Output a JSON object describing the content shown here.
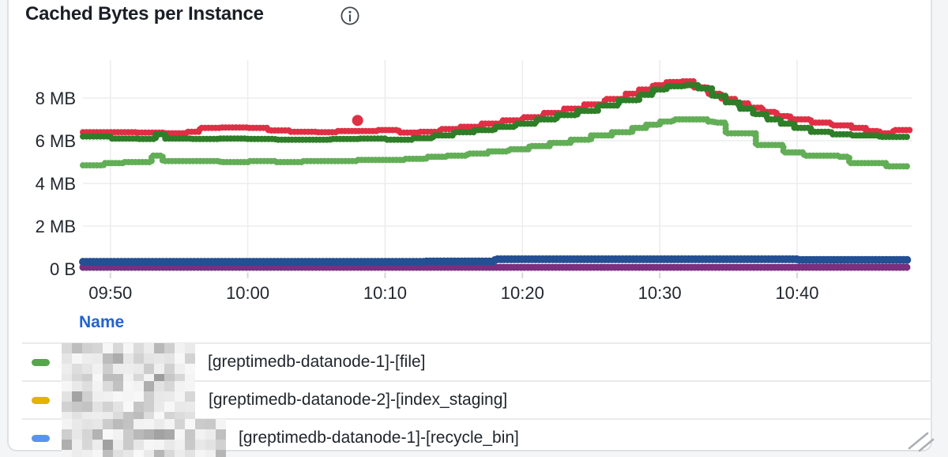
{
  "panel": {
    "title": "Cached Bytes per Instance"
  },
  "legend": {
    "header": "Name",
    "header_color": "#2264d1",
    "rows": [
      {
        "marker_color": "#56a64b",
        "redacted_prefix": true,
        "label": "[greptimedb-datanode-1]-[file]"
      },
      {
        "marker_color": "#e0b400",
        "redacted_prefix": true,
        "label": "[greptimedb-datanode-2]-[index_staging]"
      },
      {
        "marker_color": "#5794f2",
        "redacted_prefix": true,
        "label": "[greptimedb-datanode-1]-[recycle_bin]"
      }
    ]
  },
  "chart_data": {
    "type": "scatter",
    "title": "Cached Bytes per Instance",
    "grid": true,
    "xlim_minutes": [
      0,
      60.4
    ],
    "ylim_mb": [
      0,
      9.8
    ],
    "x_axis": {
      "unit": "time",
      "ticks": [
        {
          "t": 2,
          "label": "09:50"
        },
        {
          "t": 12,
          "label": "10:00"
        },
        {
          "t": 22,
          "label": "10:10"
        },
        {
          "t": 32,
          "label": "10:20"
        },
        {
          "t": 42,
          "label": "10:30"
        },
        {
          "t": 52,
          "label": "10:40"
        }
      ]
    },
    "y_axis": {
      "unit": "bytes",
      "ticks": [
        {
          "mb": 0,
          "label": "0 B"
        },
        {
          "mb": 2,
          "label": "2 MB"
        },
        {
          "mb": 4,
          "label": "4 MB"
        },
        {
          "mb": 6,
          "label": "6 MB"
        },
        {
          "mb": 8,
          "label": "8 MB"
        }
      ]
    },
    "series": [
      {
        "name": "light-green-series",
        "color": "#62ae56",
        "width": 8,
        "style": "points",
        "points": [
          [
            0,
            4.85
          ],
          [
            1.5,
            4.95
          ],
          [
            3,
            5.0
          ],
          [
            4.5,
            5.0
          ],
          [
            5,
            5.3
          ],
          [
            5.8,
            5.05
          ],
          [
            8,
            5.05
          ],
          [
            10,
            5.0
          ],
          [
            12,
            5.05
          ],
          [
            14,
            5.0
          ],
          [
            16,
            5.05
          ],
          [
            18,
            5.05
          ],
          [
            20,
            5.1
          ],
          [
            22,
            5.1
          ],
          [
            23.5,
            5.15
          ],
          [
            25,
            5.25
          ],
          [
            26.5,
            5.3
          ],
          [
            28,
            5.4
          ],
          [
            29.5,
            5.5
          ],
          [
            31,
            5.6
          ],
          [
            32.5,
            5.75
          ],
          [
            34,
            5.9
          ],
          [
            35.5,
            6.05
          ],
          [
            37,
            6.25
          ],
          [
            38.5,
            6.4
          ],
          [
            40,
            6.6
          ],
          [
            41,
            6.75
          ],
          [
            42,
            6.9
          ],
          [
            43,
            7.0
          ],
          [
            44.5,
            7.0
          ],
          [
            45.5,
            6.9
          ],
          [
            46,
            6.85
          ],
          [
            46.8,
            6.35
          ],
          [
            48.5,
            6.35
          ],
          [
            49,
            5.8
          ],
          [
            50.5,
            5.8
          ],
          [
            51,
            5.45
          ],
          [
            52.5,
            5.3
          ],
          [
            54.5,
            5.3
          ],
          [
            55,
            5.25
          ],
          [
            55.8,
            4.95
          ],
          [
            58,
            4.95
          ],
          [
            58.5,
            4.8
          ],
          [
            60.2,
            4.8
          ]
        ]
      },
      {
        "name": "red-series",
        "color": "#e02f44",
        "width": 8,
        "style": "points",
        "points": [
          [
            0,
            6.4
          ],
          [
            2,
            6.4
          ],
          [
            4,
            6.38
          ],
          [
            6,
            6.35
          ],
          [
            7.5,
            6.42
          ],
          [
            8.5,
            6.6
          ],
          [
            10,
            6.62
          ],
          [
            12,
            6.6
          ],
          [
            13.5,
            6.48
          ],
          [
            15,
            6.42
          ],
          [
            17,
            6.4
          ],
          [
            18.5,
            6.45
          ],
          [
            20,
            6.45
          ],
          [
            21.5,
            6.5
          ],
          [
            23,
            6.38
          ],
          [
            24.5,
            6.42
          ],
          [
            26,
            6.55
          ],
          [
            27.5,
            6.65
          ],
          [
            29,
            6.8
          ],
          [
            30.5,
            6.95
          ],
          [
            32,
            7.1
          ],
          [
            33.5,
            7.3
          ],
          [
            35,
            7.5
          ],
          [
            36.5,
            7.7
          ],
          [
            38,
            7.95
          ],
          [
            39.5,
            8.2
          ],
          [
            40.5,
            8.4
          ],
          [
            41.5,
            8.6
          ],
          [
            42.5,
            8.75
          ],
          [
            43.5,
            8.78
          ],
          [
            44.5,
            8.5
          ],
          [
            45.5,
            8.2
          ],
          [
            46.5,
            7.95
          ],
          [
            47.5,
            7.75
          ],
          [
            48.5,
            7.55
          ],
          [
            49.5,
            7.35
          ],
          [
            50.5,
            7.15
          ],
          [
            51.5,
            7.0
          ],
          [
            53,
            6.85
          ],
          [
            54.5,
            6.72
          ],
          [
            56,
            6.6
          ],
          [
            57,
            6.45
          ],
          [
            58,
            6.35
          ],
          [
            59,
            6.5
          ],
          [
            60.2,
            6.62
          ]
        ]
      },
      {
        "name": "dark-green-series",
        "color": "#2f7d28",
        "width": 8,
        "style": "points",
        "points": [
          [
            0,
            6.2
          ],
          [
            2,
            6.1
          ],
          [
            4,
            6.08
          ],
          [
            5.3,
            6.3
          ],
          [
            6,
            6.1
          ],
          [
            8,
            6.08
          ],
          [
            10,
            6.1
          ],
          [
            12,
            6.08
          ],
          [
            14,
            6.05
          ],
          [
            16,
            6.05
          ],
          [
            18,
            6.08
          ],
          [
            20,
            6.1
          ],
          [
            22,
            6.05
          ],
          [
            24,
            6.12
          ],
          [
            25.5,
            6.25
          ],
          [
            27,
            6.4
          ],
          [
            28.5,
            6.5
          ],
          [
            30,
            6.65
          ],
          [
            31.5,
            6.8
          ],
          [
            33,
            7.0
          ],
          [
            34.5,
            7.2
          ],
          [
            36,
            7.4
          ],
          [
            37.5,
            7.65
          ],
          [
            39,
            7.9
          ],
          [
            40.5,
            8.15
          ],
          [
            41.5,
            8.4
          ],
          [
            42.5,
            8.55
          ],
          [
            43.8,
            8.6
          ],
          [
            44.8,
            8.45
          ],
          [
            45.8,
            8.1
          ],
          [
            46.8,
            7.8
          ],
          [
            47.8,
            7.5
          ],
          [
            48.8,
            7.25
          ],
          [
            49.8,
            7.0
          ],
          [
            50.8,
            6.8
          ],
          [
            51.8,
            6.6
          ],
          [
            53,
            6.42
          ],
          [
            54.5,
            6.3
          ],
          [
            56,
            6.25
          ],
          [
            58,
            6.18
          ],
          [
            60.2,
            6.2
          ]
        ]
      },
      {
        "name": "purple-series",
        "color": "#7a2f7f",
        "width": 9,
        "style": "points",
        "points": [
          [
            0,
            0.07
          ],
          [
            60.2,
            0.07
          ]
        ]
      },
      {
        "name": "navy-series",
        "color": "#234f93",
        "width": 10,
        "style": "points",
        "points": [
          [
            0,
            0.33
          ],
          [
            25,
            0.35
          ],
          [
            30,
            0.45
          ],
          [
            48,
            0.45
          ],
          [
            52,
            0.42
          ],
          [
            60.2,
            0.42
          ]
        ]
      }
    ],
    "outliers": [
      {
        "series": "red-series",
        "t": 20,
        "mb": 6.95
      }
    ],
    "legend_position": "bottom-table"
  },
  "colors": {
    "grid": "#ecedee",
    "tick_stub": "#d5d8db",
    "axis_text": "#22272e",
    "panel_border": "#dee1e4",
    "separator": "#e8eaec",
    "resize_handle": "#abafb4"
  }
}
